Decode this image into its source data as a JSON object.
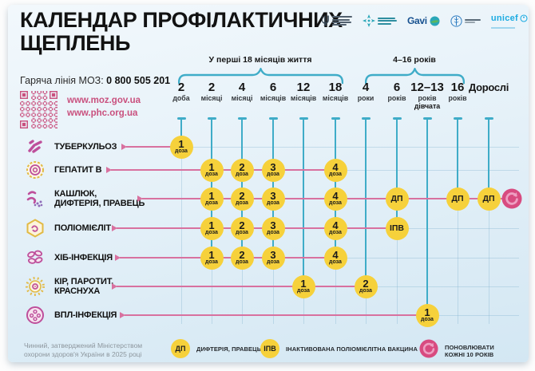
{
  "header": {
    "title": "КАЛЕНДАР ПРОФІЛАКТИЧНИХ ЩЕПЛЕНЬ",
    "hotline_label": "Гаряча лінія МОЗ:",
    "hotline_number": "0 800 505 201",
    "links": [
      "www.moz.gov.ua",
      "www.phc.org.ua"
    ],
    "logos": [
      {
        "name": "moz-ukraine"
      },
      {
        "name": "public-health-center"
      },
      {
        "name": "gavi",
        "text": "Gavi"
      },
      {
        "name": "world-health-organization"
      },
      {
        "name": "unicef",
        "text": "unicef"
      }
    ]
  },
  "timeline": {
    "groups": [
      {
        "label": "У перші 18 місяців життя"
      },
      {
        "label": "4–16 років"
      }
    ],
    "columns": [
      {
        "num": "2",
        "unit": "доба"
      },
      {
        "num": "2",
        "unit": "місяці"
      },
      {
        "num": "4",
        "unit": "місяці"
      },
      {
        "num": "6",
        "unit": "місяців"
      },
      {
        "num": "12",
        "unit": "місяців"
      },
      {
        "num": "18",
        "unit": "місяців"
      },
      {
        "num": "4",
        "unit": "роки"
      },
      {
        "num": "6",
        "unit": "років"
      },
      {
        "num": "12–13",
        "unit": "років",
        "extra": "дівчата"
      },
      {
        "num": "16",
        "unit": "років"
      },
      {
        "num": "Дорослі",
        "unit": ""
      }
    ]
  },
  "rows": [
    {
      "label_lines": [
        "ТУБЕРКУЛЬОЗ"
      ],
      "icon": "tuberculosis",
      "doses": [
        {
          "col": 0,
          "label": "1",
          "sub": "доза"
        }
      ]
    },
    {
      "label_lines": [
        "ГЕПАТИТ В"
      ],
      "icon": "hepatitis-b",
      "doses": [
        {
          "col": 1,
          "label": "1",
          "sub": "доза"
        },
        {
          "col": 2,
          "label": "2",
          "sub": "доза"
        },
        {
          "col": 3,
          "label": "3",
          "sub": "доза"
        },
        {
          "col": 5,
          "label": "4",
          "sub": "доза"
        }
      ]
    },
    {
      "label_lines": [
        "КАШЛЮК,",
        "ДИФТЕРІЯ, ПРАВЕЦЬ"
      ],
      "icon": "pertussis-diphtheria-tetanus",
      "doses": [
        {
          "col": 1,
          "label": "1",
          "sub": "доза"
        },
        {
          "col": 2,
          "label": "2",
          "sub": "доза"
        },
        {
          "col": 3,
          "label": "3",
          "sub": "доза"
        },
        {
          "col": 5,
          "label": "4",
          "sub": "доза"
        },
        {
          "col": 7,
          "label": "ДП"
        },
        {
          "col": 9,
          "label": "ДП"
        },
        {
          "col": 10,
          "label": "ДП"
        }
      ],
      "repeat_every_10_years": true
    },
    {
      "label_lines": [
        "ПОЛІОМІЄЛІТ"
      ],
      "icon": "polio",
      "doses": [
        {
          "col": 1,
          "label": "1",
          "sub": "доза"
        },
        {
          "col": 2,
          "label": "2",
          "sub": "доза"
        },
        {
          "col": 3,
          "label": "3",
          "sub": "доза"
        },
        {
          "col": 5,
          "label": "4",
          "sub": "доза"
        },
        {
          "col": 7,
          "label": "ІПВ"
        }
      ]
    },
    {
      "label_lines": [
        "ХІБ-ІНФЕКЦІЯ"
      ],
      "icon": "hib",
      "doses": [
        {
          "col": 1,
          "label": "1",
          "sub": "доза"
        },
        {
          "col": 2,
          "label": "2",
          "sub": "доза"
        },
        {
          "col": 3,
          "label": "3",
          "sub": "доза"
        },
        {
          "col": 5,
          "label": "4",
          "sub": "доза"
        }
      ]
    },
    {
      "label_lines": [
        "КІР, ПАРОТИТ,",
        "КРАСНУХА"
      ],
      "icon": "measles-mumps-rubella",
      "doses": [
        {
          "col": 4,
          "label": "1",
          "sub": "доза"
        },
        {
          "col": 6,
          "label": "2",
          "sub": "доза"
        }
      ]
    },
    {
      "label_lines": [
        "ВПЛ-ІНФЕКЦІЯ"
      ],
      "icon": "hpv",
      "doses": [
        {
          "col": 8,
          "label": "1",
          "sub": "доза"
        }
      ]
    }
  ],
  "legend": [
    {
      "badge": "ДП",
      "type": "yellow",
      "label": "ДИФТЕРІЯ, ПРАВЕЦЬ"
    },
    {
      "badge": "ІПВ",
      "type": "yellow",
      "label": "ІНАКТИВОВАНА ПОЛІОМІЄЛІТНА ВАКЦИНА"
    },
    {
      "badge": "",
      "type": "repeat",
      "label": "ПОНОВЛЮВАТИ КОЖНІ 10 РОКІВ"
    }
  ],
  "footer": "Чинний, затверджений Міністерством охорони здоров'я України в 2025 році",
  "colors": {
    "accent_teal": "#3facc8",
    "accent_pink": "#d8719f",
    "dose_yellow": "#f6d13b",
    "repeat_pink": "#d84b80",
    "link_pink": "#c9507e"
  }
}
